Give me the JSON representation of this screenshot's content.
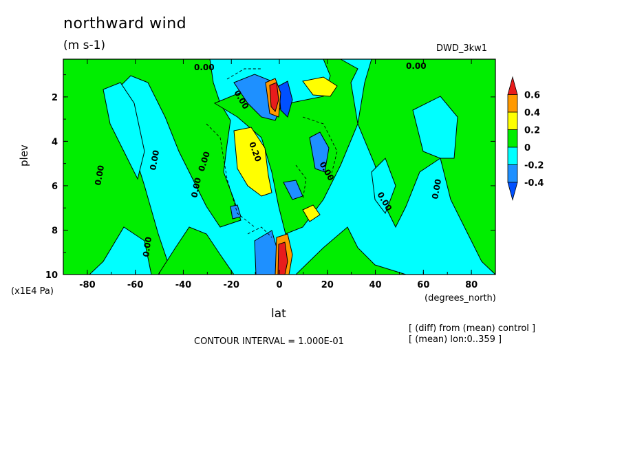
{
  "chart_data": {
    "type": "contour",
    "title": "northward wind",
    "units": "(m s-1)",
    "dataset": "DWD_3kw1",
    "xlabel": "lat",
    "xunits": "(degrees_north)",
    "ylabel": "plev",
    "yunits": "(x1E4 Pa)",
    "xlim": [
      -90,
      90
    ],
    "ylim": [
      10,
      0.3
    ],
    "x_ticks": [
      "-80",
      "-60",
      "-40",
      "-20",
      "0",
      "20",
      "40",
      "60",
      "80"
    ],
    "y_ticks": [
      "2",
      "4",
      "6",
      "8",
      "10"
    ],
    "contour_interval": "CONTOUR INTERVAL = 1.000E-01",
    "notes": [
      "[ (diff) from (mean) control ]",
      "[ (mean) lon:0..359 ]"
    ],
    "colorbar": {
      "labels": [
        "0.6",
        "0.4",
        "0.2",
        "0",
        "-0.2",
        "-0.4"
      ],
      "colors": [
        "#e81c1c",
        "#ff9900",
        "#ffff00",
        "#00ee00",
        "#00ffff",
        "#1e90ff",
        "#0050ff"
      ]
    },
    "contour_labels": [
      "0.00",
      "0.00",
      "0.00",
      "0.00",
      "0.00",
      "0.00",
      "0.00",
      "0.00",
      "0.00",
      "0.20",
      "0.00",
      "0.00"
    ]
  }
}
